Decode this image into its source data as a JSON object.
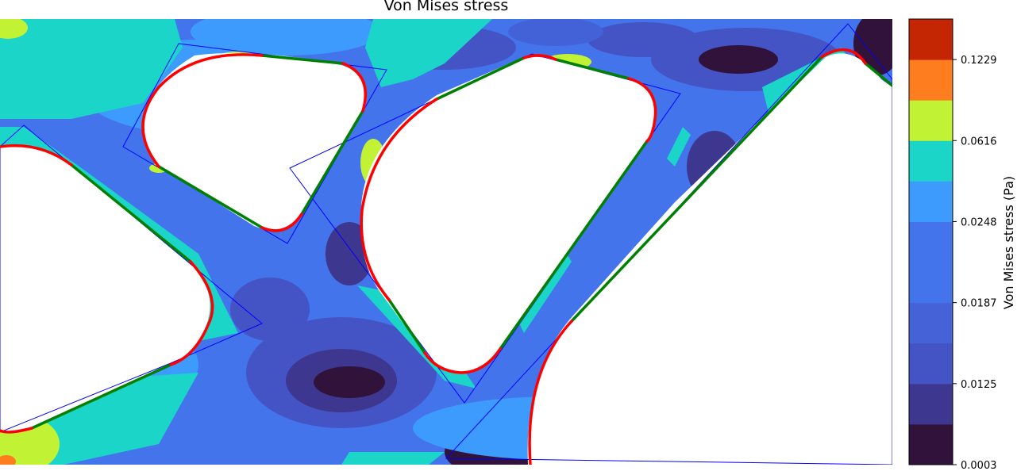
{
  "chart_data": {
    "type": "heatmap",
    "title": "Von Mises stress",
    "colorbar": {
      "label": "Von Mises stress (Pa)",
      "tick_labels": [
        "0.0003",
        "0.0125",
        "0.0187",
        "0.0248",
        "0.0616",
        "0.1229"
      ],
      "levels": 11,
      "colors": [
        "#30123b",
        "#3e378f",
        "#4454c4",
        "#4662d7",
        "#4374ec",
        "#3e9bfe",
        "#1ad5c8",
        "#c2f234",
        "#fe7e1f",
        "#c42503"
      ]
    },
    "overlays": {
      "hole_outline_color": "#ff0000",
      "straight_edge_color": "#008000",
      "reference_polygon_color": "#0000ff"
    }
  }
}
